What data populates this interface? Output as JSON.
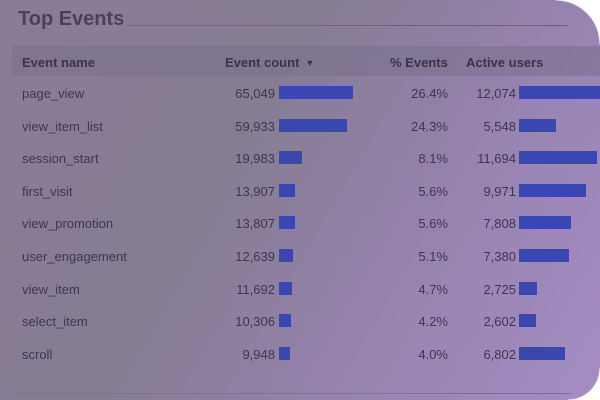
{
  "card": {
    "title": "Top Events"
  },
  "table": {
    "headers": {
      "event_name": "Event name",
      "event_count": "Event count",
      "sort_indicator": "▼",
      "pct_events": "% Events",
      "active_users": "Active users"
    },
    "max_event_count": 65049,
    "max_active_users": 12074,
    "rows": [
      {
        "name": "page_view",
        "count": "65,049",
        "count_value": 65049,
        "pct": "26.4%",
        "users": "12,074",
        "users_value": 12074
      },
      {
        "name": "view_item_list",
        "count": "59,933",
        "count_value": 59933,
        "pct": "24.3%",
        "users": "5,548",
        "users_value": 5548
      },
      {
        "name": "session_start",
        "count": "19,983",
        "count_value": 19983,
        "pct": "8.1%",
        "users": "11,694",
        "users_value": 11694
      },
      {
        "name": "first_visit",
        "count": "13,907",
        "count_value": 13907,
        "pct": "5.6%",
        "users": "9,971",
        "users_value": 9971
      },
      {
        "name": "view_promotion",
        "count": "13,807",
        "count_value": 13807,
        "pct": "5.6%",
        "users": "7,808",
        "users_value": 7808
      },
      {
        "name": "user_engagement",
        "count": "12,639",
        "count_value": 12639,
        "pct": "5.1%",
        "users": "7,380",
        "users_value": 7380
      },
      {
        "name": "view_item",
        "count": "11,692",
        "count_value": 11692,
        "pct": "4.7%",
        "users": "2,725",
        "users_value": 2725
      },
      {
        "name": "select_item",
        "count": "10,306",
        "count_value": 10306,
        "pct": "4.2%",
        "users": "2,602",
        "users_value": 2602
      },
      {
        "name": "scroll",
        "count": "9,948",
        "count_value": 9948,
        "pct": "4.0%",
        "users": "6,802",
        "users_value": 6802
      }
    ]
  },
  "colors": {
    "bar": "#3b47b0",
    "title": "#4b3f5a"
  }
}
